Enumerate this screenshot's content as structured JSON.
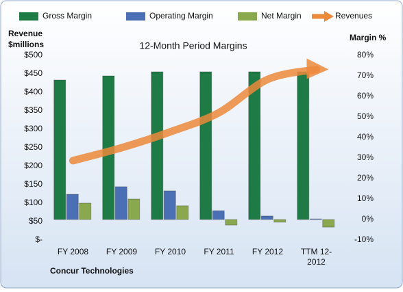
{
  "chart_data": {
    "type": "bar_line",
    "title": "12-Month Period Margins",
    "ylabel": [
      "Revenue",
      "$millions"
    ],
    "y2label": "Margin %",
    "annotation": "Concur Technologies",
    "categories": [
      "FY 2008",
      "FY 2009",
      "FY 2010",
      "FY 2011",
      "FY 2012",
      "TTM 12-2012"
    ],
    "series": [
      {
        "name": "Gross Margin",
        "color": "#1e7b45",
        "axis": "y2",
        "kind": "bar",
        "values": [
          68,
          70,
          72,
          72,
          72,
          72
        ]
      },
      {
        "name": "Operating Margin",
        "color": "#4a6fb5",
        "axis": "y2",
        "kind": "bar",
        "values": [
          12.3,
          16,
          14,
          4.3,
          1.7,
          0.3
        ]
      },
      {
        "name": "Net Margin",
        "color": "#8aa84e",
        "axis": "y2",
        "kind": "bar",
        "values": [
          8,
          10,
          6.7,
          -2.7,
          -1.3,
          -3.7
        ]
      },
      {
        "name": "Revenues",
        "color": "#ec8a3c",
        "axis": "y",
        "kind": "line",
        "values": [
          215,
          250,
          293,
          345,
          435,
          462
        ]
      }
    ],
    "ylim": [
      0,
      500
    ],
    "yticks": [
      {
        "value": 0,
        "label": "$-"
      },
      {
        "value": 50,
        "label": "$50"
      },
      {
        "value": 100,
        "label": "$100"
      },
      {
        "value": 150,
        "label": "$150"
      },
      {
        "value": 200,
        "label": "$200"
      },
      {
        "value": 250,
        "label": "$250"
      },
      {
        "value": 300,
        "label": "$300"
      },
      {
        "value": 350,
        "label": "$350"
      },
      {
        "value": 400,
        "label": "$400"
      },
      {
        "value": 450,
        "label": "$450"
      },
      {
        "value": 500,
        "label": "$500"
      }
    ],
    "y2lim": [
      -10,
      80
    ],
    "y2ticks": [
      {
        "value": -10,
        "label": "-10%"
      },
      {
        "value": 0,
        "label": "0%"
      },
      {
        "value": 10,
        "label": "10%"
      },
      {
        "value": 20,
        "label": "20%"
      },
      {
        "value": 30,
        "label": "30%"
      },
      {
        "value": 40,
        "label": "40%"
      },
      {
        "value": 50,
        "label": "50%"
      },
      {
        "value": 60,
        "label": "60%"
      },
      {
        "value": 70,
        "label": "70%"
      },
      {
        "value": 80,
        "label": "80%"
      }
    ]
  }
}
